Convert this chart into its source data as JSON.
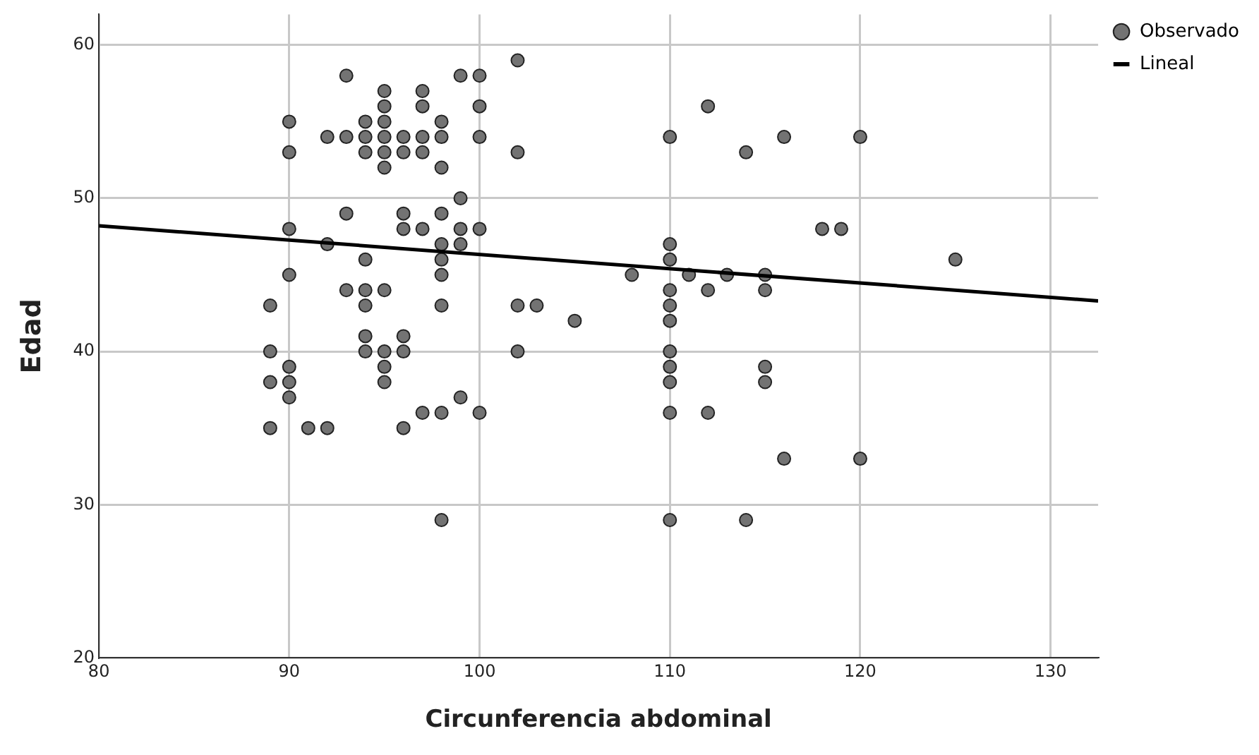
{
  "chart_data": {
    "type": "scatter",
    "xlabel": "Circunferencia abdominal",
    "ylabel": "Edad",
    "xlim": [
      80,
      132.5
    ],
    "xticks": [
      80,
      90,
      100,
      110,
      120,
      130
    ],
    "ylim": [
      20,
      62
    ],
    "yticks": [
      20,
      30,
      40,
      50,
      60
    ],
    "grid": true,
    "legend": "top right",
    "series": [
      {
        "name": "Observado",
        "marker": "circle",
        "color": "#737373",
        "x": [
          89,
          89,
          89,
          89,
          90,
          90,
          90,
          90,
          90,
          90,
          90,
          91,
          92,
          92,
          92,
          93,
          93,
          93,
          93,
          94,
          94,
          94,
          94,
          94,
          94,
          94,
          94,
          95,
          95,
          95,
          95,
          95,
          95,
          95,
          95,
          95,
          95,
          96,
          96,
          96,
          96,
          96,
          96,
          96,
          97,
          97,
          97,
          97,
          97,
          97,
          98,
          98,
          98,
          98,
          98,
          98,
          98,
          98,
          98,
          98,
          99,
          99,
          99,
          99,
          99,
          100,
          100,
          100,
          100,
          100,
          102,
          102,
          102,
          102,
          103,
          105,
          108,
          110,
          110,
          110,
          110,
          110,
          110,
          110,
          110,
          110,
          110,
          110,
          111,
          112,
          112,
          112,
          113,
          114,
          114,
          115,
          115,
          115,
          115,
          116,
          116,
          118,
          119,
          120,
          120,
          125
        ],
        "values": [
          43,
          40,
          38,
          35,
          55,
          53,
          48,
          45,
          39,
          38,
          37,
          35,
          54,
          47,
          35,
          58,
          54,
          49,
          44,
          55,
          54,
          53,
          46,
          44,
          43,
          41,
          40,
          57,
          56,
          55,
          54,
          53,
          52,
          44,
          40,
          39,
          38,
          54,
          53,
          49,
          48,
          41,
          40,
          35,
          57,
          56,
          54,
          53,
          48,
          36,
          55,
          54,
          52,
          49,
          47,
          46,
          45,
          43,
          36,
          29,
          58,
          50,
          48,
          47,
          37,
          58,
          56,
          54,
          48,
          36,
          59,
          53,
          43,
          40,
          43,
          42,
          45,
          54,
          47,
          46,
          44,
          43,
          42,
          40,
          39,
          38,
          36,
          29,
          45,
          56,
          44,
          36,
          45,
          53,
          29,
          45,
          44,
          39,
          38,
          54,
          33,
          48,
          48,
          54,
          33,
          46
        ]
      },
      {
        "name": "Lineal",
        "type": "line",
        "marker": "none",
        "line_style": "solid",
        "color": "#000000",
        "x": [
          80,
          132.5
        ],
        "values": [
          48.2,
          43.3
        ]
      }
    ]
  }
}
